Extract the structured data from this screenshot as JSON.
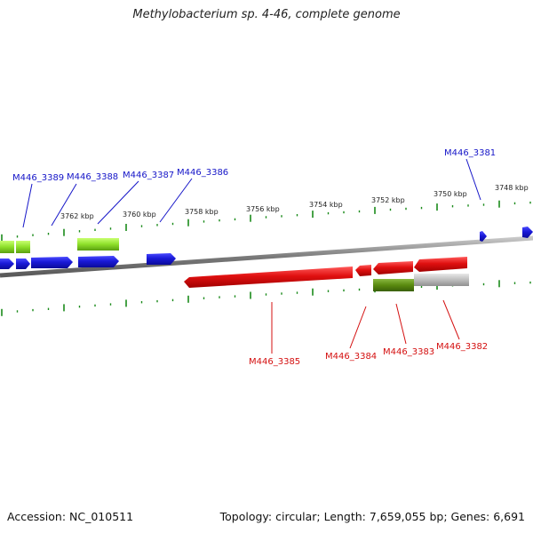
{
  "title": "Methylobacterium sp. 4-46, complete genome",
  "accession": "Accession: NC_010511",
  "summary": "Topology: circular; Length: 7,659,055 bp; Genes: 6,691",
  "colors": {
    "forward_gene": "#1a1ad8",
    "reverse_gene": "#e01010",
    "backbone": "#8a8a8a",
    "tick": "#1a8a1a",
    "feature_lime": "#8ee02a",
    "feature_olive": "#5a8a10",
    "feature_gray": "#bdbdbd",
    "forward_label": "#1515c8",
    "reverse_label": "#d41010"
  },
  "scale_ticks": [
    "3762 kbp",
    "3760 kbp",
    "3758 kbp",
    "3756 kbp",
    "3754 kbp",
    "3752 kbp",
    "3750 kbp",
    "3748 kbp"
  ],
  "forward_gene_labels": [
    "M446_3389",
    "M446_3388",
    "M446_3387",
    "M446_3386",
    "M446_3381"
  ],
  "reverse_gene_labels": [
    "M446_3385",
    "M446_3384",
    "M446_3383",
    "M446_3382"
  ]
}
